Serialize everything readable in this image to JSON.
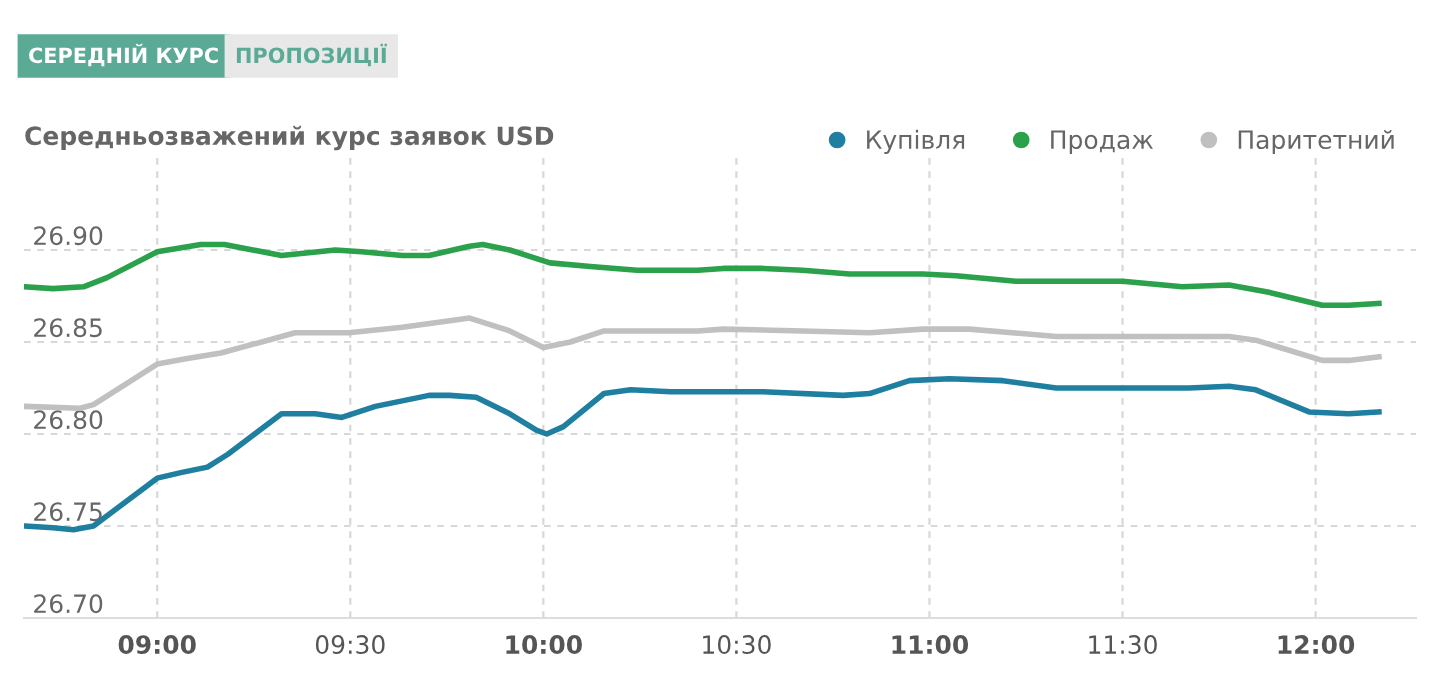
{
  "chart_data": {
    "type": "line",
    "title": "Середньозважений курс заявок USD",
    "annotations": [
      "СЕРЕДНІЙ КУРС",
      "ПРОПОЗИЦІЇ"
    ],
    "series": [
      {
        "name": "Купівля",
        "color": "#1f7fa0",
        "x": [
          8.657,
          8.73,
          8.783,
          8.835,
          9.0,
          9.061,
          9.13,
          9.183,
          9.322,
          9.409,
          9.478,
          9.565,
          9.704,
          9.757,
          9.826,
          9.913,
          9.983,
          10.009,
          10.052,
          10.157,
          10.226,
          10.33,
          10.47,
          10.569,
          10.776,
          10.845,
          10.948,
          11.052,
          11.19,
          11.328,
          11.5,
          11.672,
          11.776,
          11.845,
          11.983,
          12.086,
          12.164
        ],
        "values": [
          26.75,
          26.749,
          26.748,
          26.75,
          26.776,
          26.779,
          26.782,
          26.789,
          26.811,
          26.811,
          26.809,
          26.815,
          26.821,
          26.821,
          26.82,
          26.811,
          26.802,
          26.8,
          26.804,
          26.822,
          26.824,
          26.823,
          26.823,
          26.823,
          26.821,
          26.822,
          26.829,
          26.83,
          26.829,
          26.825,
          26.825,
          26.825,
          26.826,
          26.824,
          26.812,
          26.811,
          26.812
        ]
      },
      {
        "name": "Продаж",
        "color": "#2aa14a",
        "x": [
          8.657,
          8.73,
          8.809,
          8.87,
          9.0,
          9.113,
          9.174,
          9.322,
          9.461,
          9.53,
          9.635,
          9.704,
          9.809,
          9.843,
          9.913,
          10.017,
          10.122,
          10.243,
          10.4,
          10.466,
          10.569,
          10.672,
          10.793,
          10.983,
          11.069,
          11.224,
          11.5,
          11.655,
          11.776,
          11.879,
          12.017,
          12.086,
          12.164
        ],
        "values": [
          26.88,
          26.879,
          26.88,
          26.885,
          26.899,
          26.903,
          26.903,
          26.897,
          26.9,
          26.899,
          26.897,
          26.897,
          26.902,
          26.903,
          26.9,
          26.893,
          26.891,
          26.889,
          26.889,
          26.89,
          26.89,
          26.889,
          26.887,
          26.887,
          26.886,
          26.883,
          26.883,
          26.88,
          26.881,
          26.877,
          26.87,
          26.87,
          26.871
        ]
      },
      {
        "name": "Паритетний",
        "color": "#c0c0c0",
        "x": [
          8.657,
          8.8,
          8.835,
          9.0,
          9.078,
          9.165,
          9.357,
          9.496,
          9.635,
          9.809,
          9.913,
          10.0,
          10.07,
          10.157,
          10.261,
          10.4,
          10.466,
          10.672,
          10.845,
          10.983,
          11.103,
          11.328,
          11.5,
          11.776,
          11.845,
          12.017,
          12.086,
          12.164
        ],
        "values": [
          26.815,
          26.814,
          26.816,
          26.838,
          26.841,
          26.844,
          26.855,
          26.855,
          26.858,
          26.863,
          26.856,
          26.847,
          26.85,
          26.856,
          26.856,
          26.856,
          26.857,
          26.856,
          26.855,
          26.857,
          26.857,
          26.853,
          26.853,
          26.853,
          26.851,
          26.84,
          26.84,
          26.842
        ]
      }
    ],
    "xlim": [
      8.655,
      12.26
    ],
    "xticks": [
      {
        "value": 9,
        "label": "09:00"
      },
      {
        "value": 9.5,
        "label": "09:30"
      },
      {
        "value": 10,
        "label": "10:00"
      },
      {
        "value": 10.5,
        "label": "10:30"
      },
      {
        "value": 11,
        "label": "11:00"
      },
      {
        "value": 11.5,
        "label": "11:30"
      },
      {
        "value": 12,
        "label": "12:00"
      }
    ],
    "ylim": [
      26.7,
      26.95
    ],
    "yticks": [
      {
        "value": 26.7,
        "label": "26.70"
      },
      {
        "value": 26.75,
        "label": "26.75"
      },
      {
        "value": 26.8,
        "label": "26.80"
      },
      {
        "value": 26.85,
        "label": "26.85"
      },
      {
        "value": 26.9,
        "label": "26.90"
      }
    ],
    "grid": true,
    "legend": "top right",
    "marker": "none",
    "line_style": "solid"
  }
}
